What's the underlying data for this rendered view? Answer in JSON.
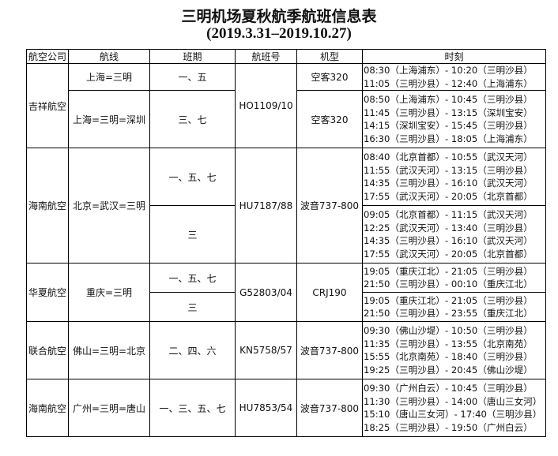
{
  "title": "三明机场夏秋航季航班信息表",
  "subtitle": "(2019.3.31–2019.10.27)",
  "headers": [
    "航空公司",
    "航线",
    "班期",
    "航班号",
    "机型",
    "时刻"
  ],
  "groups": [
    {
      "airline": "吉祥航空",
      "flight": "HO1109/10",
      "segments": [
        {
          "route": "上海=三明",
          "days": "一、五",
          "aircraft": "空客320",
          "times": [
            "08:30（上海浦东）- 10:20（三明沙县）",
            "11:05（三明沙县）- 12:40（上海浦东）"
          ]
        },
        {
          "route": "上海=三明=深圳",
          "days": "三、七",
          "aircraft": "空客320",
          "times": [
            "08:50（上海浦东）- 10:45（三明沙县）",
            "11:45（三明沙县）- 13:15（深圳宝安）",
            "14:15（深圳宝安）- 15:45（三明沙县）",
            "16:30（三明沙县）- 18:05（上海浦东）"
          ]
        }
      ]
    },
    {
      "airline": "海南航空",
      "route": "北京=武汉=三明",
      "flight": "HU7187/88",
      "aircraft": "波音737-800",
      "segments": [
        {
          "days": "一、五、七",
          "times": [
            "08:40（北京首都）- 10:55（武汉天河）",
            "11:55（武汉天河）- 13:15（三明沙县）",
            "14:35（三明沙县）- 16:10（武汉天河）",
            "17:55（武汉天河）- 20:05（北京首都）"
          ]
        },
        {
          "days": "三",
          "times": [
            "09:05（北京首都）- 11:15（武汉天河）",
            "12:25（武汉天河）- 13:40（三明沙县）",
            "14:35（三明沙县）- 16:10（武汉天河）",
            "17:55（武汉天河）- 20:05（北京首都）"
          ]
        }
      ]
    },
    {
      "airline": "华夏航空",
      "route": "重庆=三明",
      "flight": "G52803/04",
      "aircraft": "CRJ190",
      "segments": [
        {
          "days": "一、五、七",
          "times": [
            "19:05（重庆江北）- 21:05（三明沙县）",
            "21:50（三明沙县）- 00:10（重庆江北）"
          ]
        },
        {
          "days": "三",
          "times": [
            "19:05（重庆江北）- 21:05（三明沙县）",
            "21:50（三明沙县）- 23:55（重庆江北）"
          ]
        }
      ]
    },
    {
      "airline": "联合航空",
      "route": "佛山=三明=北京",
      "flight": "KN5758/57",
      "aircraft": "波音737-800",
      "segments": [
        {
          "days": "二、四、六",
          "times": [
            "09:30（佛山沙堤）- 10:50（三明沙县）",
            "11:35（三明沙县）- 13:55（北京南苑）",
            "15:55（北京南苑）- 18:40（三明沙县）",
            "19:25（三明沙县）- 20:45（佛山沙堤）"
          ]
        }
      ]
    },
    {
      "airline": "海南航空",
      "route": "广州=三明=唐山",
      "flight": "HU7853/54",
      "aircraft": "波音737-800",
      "segments": [
        {
          "days": "一、三、五、七",
          "times": [
            "09:30（广州白云）- 10:45（三明沙县）",
            "11:30（三明沙县）- 14:00（唐山三女河）",
            "15:10（唐山三女河）- 17:40（三明沙县）",
            "18:25（三明沙县）- 19:50（广州白云）"
          ]
        }
      ]
    }
  ]
}
